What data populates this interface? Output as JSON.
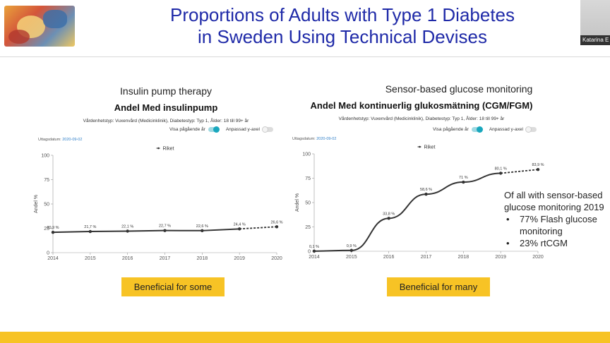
{
  "slide": {
    "title_line1": "Proportions of Adults with Type 1 Diabetes",
    "title_line2": "in Sweden Using Technical Devises",
    "presenter": "Katarina E"
  },
  "left_panel": {
    "caption": "Insulin pump therapy",
    "heading": "Andel Med insulinpump",
    "meta": "Vårdenhetstyp: Vuxenvård (Medicinklinik), Diabetestyp: Typ 1, Ålder: 18 till 99+ år",
    "toggle_running_year": "Visa pågående år",
    "toggle_custom_axis": "Anpassad y-axel",
    "date_label": "Uttagsdatum:",
    "date_value": "2020-09-02",
    "badge": "Beneficial for some"
  },
  "right_panel": {
    "caption": "Sensor-based glucose monitoring",
    "heading": "Andel Med kontinuerlig glukosmätning (CGM/FGM)",
    "meta": "Vårdenhetstyp: Vuxenvård (Medicinklinik), Diabetestyp: Typ 1, Ålder: 18 till 99+ år",
    "toggle_running_year": "Visa pågående år",
    "toggle_custom_axis": "Anpassad y-axel",
    "date_label": "Uttagsdatum:",
    "date_value": "2020-09-02",
    "badge": "Beneficial for many"
  },
  "note": {
    "intro": "Of all with sensor-based glucose monitoring 2019",
    "items": [
      "77% Flash glucose monitoring",
      "23% rtCGM"
    ]
  },
  "chart_data": [
    {
      "type": "line",
      "title": "Andel Med insulinpump",
      "ylabel": "Andel %",
      "ylim": [
        0,
        100
      ],
      "yticks": [
        0,
        25,
        50,
        75,
        100
      ],
      "x": [
        "2014",
        "2015",
        "2016",
        "2017",
        "2018",
        "2019",
        "2020"
      ],
      "series": [
        {
          "name": "Riket",
          "values": [
            20.9,
            21.7,
            22.1,
            22.7,
            22.6,
            24.4,
            26.6
          ],
          "labels": [
            "20,9 %",
            "21,7 %",
            "22,1 %",
            "22,7 %",
            "22,6 %",
            "24,4 %",
            "26,6 %"
          ],
          "dashed_from_index": 5
        }
      ],
      "legend": "top"
    },
    {
      "type": "line",
      "title": "Andel Med kontinuerlig glukosmätning (CGM/FGM)",
      "ylabel": "Andel %",
      "ylim": [
        0,
        100
      ],
      "yticks": [
        0,
        25,
        50,
        75,
        100
      ],
      "x": [
        "2014",
        "2015",
        "2016",
        "2017",
        "2018",
        "2019",
        "2020"
      ],
      "series": [
        {
          "name": "Riket",
          "values": [
            0.1,
            0.9,
            33.8,
            58.6,
            71.0,
            80.1,
            83.9
          ],
          "labels": [
            "0,1 %",
            "0,9 %",
            "33,8 %",
            "58,6 %",
            "71 %",
            "80,1 %",
            "83,9 %"
          ],
          "dashed_from_index": 5
        }
      ],
      "legend": "top"
    }
  ]
}
